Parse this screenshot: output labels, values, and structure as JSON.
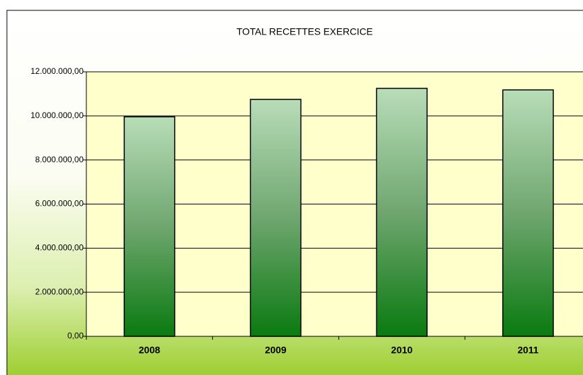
{
  "chart_data": {
    "type": "bar",
    "title": "TOTAL RECETTES EXERCICE",
    "categories": [
      "2008",
      "2009",
      "2010",
      "2011"
    ],
    "values": [
      9960000,
      10750000,
      11250000,
      11180000
    ],
    "ylim": [
      0,
      12000000
    ],
    "yticks": [
      {
        "value": 0,
        "label": "0,00"
      },
      {
        "value": 2000000,
        "label": "2.000.000,00"
      },
      {
        "value": 4000000,
        "label": "4.000.000,00"
      },
      {
        "value": 6000000,
        "label": "6.000.000,00"
      },
      {
        "value": 8000000,
        "label": "8.000.000,00"
      },
      {
        "value": 10000000,
        "label": "10.000.000,00"
      },
      {
        "value": 12000000,
        "label": "12.000.000,00"
      }
    ],
    "grid": true
  }
}
